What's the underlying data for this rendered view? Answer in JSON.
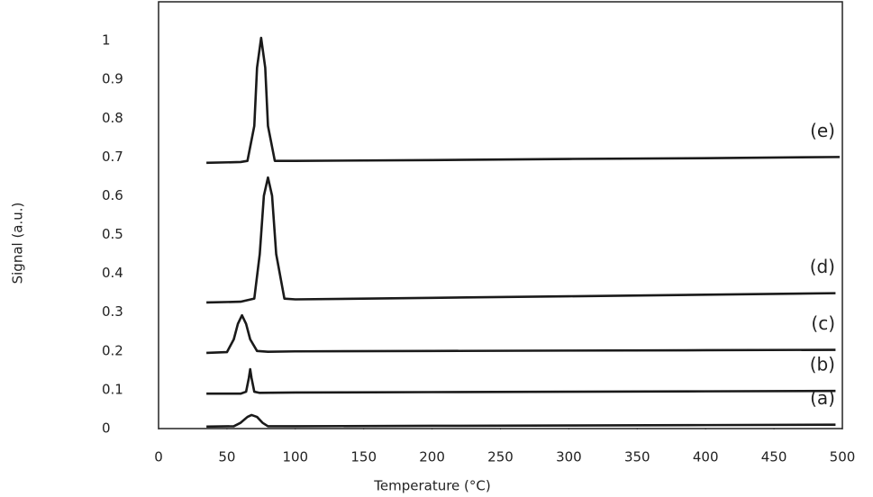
{
  "chart_data": {
    "type": "line",
    "x_label": "Temperature (°C)",
    "y_label": "Signal (a.u.)",
    "xlim": [
      0,
      500
    ],
    "xticks": [
      0,
      50,
      100,
      150,
      200,
      250,
      300,
      350,
      400,
      450,
      500
    ],
    "ylim": [
      0,
      1.1
    ],
    "yticks": [
      0,
      0.1,
      0.2,
      0.3,
      0.4,
      0.5,
      0.6,
      0.7,
      0.8,
      0.9,
      1
    ],
    "grid": false,
    "series": [
      {
        "name": "(a)",
        "color": "#1a1a1a",
        "x": [
          35,
          55,
          60,
          65,
          68,
          72,
          76,
          80,
          100,
          200,
          300,
          400,
          495
        ],
        "values": [
          0.005,
          0.006,
          0.015,
          0.03,
          0.035,
          0.03,
          0.015,
          0.006,
          0.006,
          0.007,
          0.008,
          0.009,
          0.01
        ]
      },
      {
        "name": "(b)",
        "color": "#1a1a1a",
        "x": [
          35,
          60,
          64,
          66,
          67,
          68,
          70,
          74,
          100,
          200,
          300,
          400,
          495
        ],
        "values": [
          0.09,
          0.09,
          0.095,
          0.13,
          0.153,
          0.13,
          0.095,
          0.092,
          0.093,
          0.094,
          0.095,
          0.096,
          0.097
        ]
      },
      {
        "name": "(c)",
        "color": "#1a1a1a",
        "x": [
          35,
          50,
          55,
          58,
          61,
          64,
          67,
          72,
          80,
          100,
          200,
          300,
          400,
          495
        ],
        "values": [
          0.195,
          0.197,
          0.23,
          0.27,
          0.292,
          0.27,
          0.23,
          0.2,
          0.198,
          0.199,
          0.2,
          0.201,
          0.202,
          0.203
        ]
      },
      {
        "name": "(d)",
        "color": "#1a1a1a",
        "x": [
          35,
          60,
          70,
          74,
          77,
          80,
          83,
          86,
          92,
          100,
          200,
          300,
          400,
          495
        ],
        "values": [
          0.325,
          0.327,
          0.335,
          0.45,
          0.6,
          0.647,
          0.6,
          0.45,
          0.335,
          0.333,
          0.337,
          0.341,
          0.345,
          0.349
        ]
      },
      {
        "name": "(e)",
        "color": "#1a1a1a",
        "x": [
          35,
          60,
          65,
          70,
          72,
          75,
          78,
          80,
          85,
          100,
          200,
          300,
          400,
          498
        ],
        "values": [
          0.685,
          0.687,
          0.69,
          0.78,
          0.93,
          1.007,
          0.93,
          0.78,
          0.69,
          0.69,
          0.692,
          0.695,
          0.697,
          0.7
        ]
      }
    ]
  }
}
